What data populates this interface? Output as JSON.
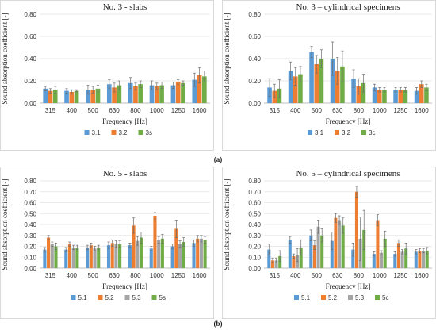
{
  "captions": [
    "(a)",
    "(b)"
  ],
  "chart_data": [
    {
      "type": "bar",
      "title": "No. 3 - slabs",
      "xlabel": "Frequency [Hz]",
      "ylabel": "Sound absorption coefficient [-]",
      "ylim": [
        0,
        0.8
      ],
      "yticks": [
        "0.00",
        "0.20",
        "0.40",
        "0.60",
        "0.80"
      ],
      "categories": [
        "315",
        "400",
        "500",
        "630",
        "800",
        "1000",
        "1250",
        "1600"
      ],
      "grid": true,
      "legend": "bottom",
      "series": [
        {
          "name": "3.1",
          "color": "#5B9BD5",
          "values": [
            0.13,
            0.11,
            0.12,
            0.17,
            0.18,
            0.16,
            0.16,
            0.21
          ],
          "errors": [
            0.02,
            0.02,
            0.04,
            0.04,
            0.05,
            0.04,
            0.03,
            0.06
          ]
        },
        {
          "name": "3.2",
          "color": "#ED7D31",
          "values": [
            0.11,
            0.1,
            0.12,
            0.14,
            0.15,
            0.15,
            0.19,
            0.25
          ],
          "errors": [
            0.02,
            0.02,
            0.03,
            0.04,
            0.03,
            0.03,
            0.02,
            0.07
          ]
        },
        {
          "name": "3s",
          "color": "#70AD47",
          "values": [
            0.12,
            0.11,
            0.13,
            0.16,
            0.17,
            0.16,
            0.18,
            0.24
          ],
          "errors": [
            0.03,
            0.01,
            0.03,
            0.04,
            0.03,
            0.03,
            0.02,
            0.05
          ]
        }
      ]
    },
    {
      "type": "bar",
      "title": "No. 3 – cylindrical specimens",
      "xlabel": "Frequency [Hz]",
      "ylabel": "Sound absorption coefficient [-]",
      "ylim": [
        0,
        0.8
      ],
      "yticks": [
        "0.00",
        "0.20",
        "0.40",
        "0.60",
        "0.80"
      ],
      "categories": [
        "315",
        "400",
        "500",
        "630",
        "800",
        "1000",
        "1250",
        "1600"
      ],
      "grid": true,
      "legend": "bottom",
      "series": [
        {
          "name": "3.1",
          "color": "#5B9BD5",
          "values": [
            0.14,
            0.29,
            0.46,
            0.4,
            0.22,
            0.14,
            0.12,
            0.11
          ],
          "errors": [
            0.08,
            0.08,
            0.05,
            0.15,
            0.08,
            0.03,
            0.02,
            0.03
          ]
        },
        {
          "name": "3.2",
          "color": "#ED7D31",
          "values": [
            0.11,
            0.24,
            0.35,
            0.29,
            0.15,
            0.12,
            0.12,
            0.17
          ],
          "errors": [
            0.06,
            0.08,
            0.08,
            0.12,
            0.07,
            0.02,
            0.02,
            0.03
          ]
        },
        {
          "name": "3c",
          "color": "#70AD47",
          "values": [
            0.13,
            0.26,
            0.4,
            0.33,
            0.18,
            0.12,
            0.12,
            0.14
          ],
          "errors": [
            0.08,
            0.07,
            0.08,
            0.14,
            0.08,
            0.02,
            0.02,
            0.03
          ]
        }
      ]
    },
    {
      "type": "bar",
      "title": "No. 5 - slabs",
      "xlabel": "Frequency [Hz]",
      "ylabel": "Sound absorption coefficient [-]",
      "ylim": [
        0,
        0.8
      ],
      "yticks": [
        "0.00",
        "0.10",
        "0.20",
        "0.30",
        "0.40",
        "0.50",
        "0.60",
        "0.70",
        "0.80"
      ],
      "categories": [
        "315",
        "400",
        "500",
        "630",
        "800",
        "1000",
        "1250",
        "1600"
      ],
      "grid": true,
      "legend": "bottom",
      "series": [
        {
          "name": "5.1",
          "color": "#5B9BD5",
          "values": [
            0.17,
            0.17,
            0.19,
            0.21,
            0.21,
            0.18,
            0.2,
            0.23
          ],
          "errors": [
            0.02,
            0.02,
            0.02,
            0.03,
            0.02,
            0.02,
            0.02,
            0.03
          ]
        },
        {
          "name": "5.2",
          "color": "#ED7D31",
          "values": [
            0.28,
            0.22,
            0.21,
            0.23,
            0.39,
            0.48,
            0.36,
            0.27
          ],
          "errors": [
            0.02,
            0.02,
            0.02,
            0.03,
            0.07,
            0.03,
            0.08,
            0.03
          ]
        },
        {
          "name": "5.3",
          "color": "#A5A5A5",
          "values": [
            0.22,
            0.19,
            0.18,
            0.22,
            0.25,
            0.26,
            0.22,
            0.27
          ],
          "errors": [
            0.02,
            0.02,
            0.02,
            0.03,
            0.04,
            0.03,
            0.03,
            0.03
          ]
        },
        {
          "name": "5s",
          "color": "#70AD47",
          "values": [
            0.2,
            0.19,
            0.19,
            0.22,
            0.28,
            0.27,
            0.24,
            0.26
          ],
          "errors": [
            0.03,
            0.02,
            0.02,
            0.03,
            0.05,
            0.04,
            0.04,
            0.03
          ]
        }
      ]
    },
    {
      "type": "bar",
      "title": "No. 5 – cylindrical specimens",
      "xlabel": "Frequency [Hz]",
      "ylabel": "Sound absorption coefficient [-]",
      "ylim": [
        0,
        0.8
      ],
      "yticks": [
        "0.00",
        "0.10",
        "0.20",
        "0.30",
        "0.40",
        "0.50",
        "0.60",
        "0.70",
        "0.80"
      ],
      "categories": [
        "315",
        "400",
        "500",
        "630",
        "800",
        "1000",
        "1250",
        "1600"
      ],
      "grid": true,
      "legend": "bottom",
      "series": [
        {
          "name": "5.1",
          "color": "#5B9BD5",
          "values": [
            0.17,
            0.26,
            0.3,
            0.25,
            0.17,
            0.13,
            0.13,
            0.15
          ],
          "errors": [
            0.05,
            0.03,
            0.05,
            0.08,
            0.06,
            0.02,
            0.02,
            0.02
          ]
        },
        {
          "name": "5.2",
          "color": "#ED7D31",
          "values": [
            0.07,
            0.11,
            0.21,
            0.46,
            0.7,
            0.44,
            0.23,
            0.16
          ],
          "errors": [
            0.02,
            0.02,
            0.04,
            0.04,
            0.05,
            0.05,
            0.03,
            0.02
          ]
        },
        {
          "name": "5.3",
          "color": "#A5A5A5",
          "values": [
            0.07,
            0.12,
            0.38,
            0.44,
            0.27,
            0.14,
            0.15,
            0.16
          ],
          "errors": [
            0.02,
            0.06,
            0.06,
            0.04,
            0.2,
            0.02,
            0.02,
            0.02
          ]
        },
        {
          "name": "5c",
          "color": "#70AD47",
          "values": [
            0.11,
            0.19,
            0.3,
            0.39,
            0.35,
            0.27,
            0.18,
            0.16
          ],
          "errors": [
            0.05,
            0.07,
            0.06,
            0.07,
            0.18,
            0.07,
            0.05,
            0.03
          ]
        }
      ]
    }
  ]
}
